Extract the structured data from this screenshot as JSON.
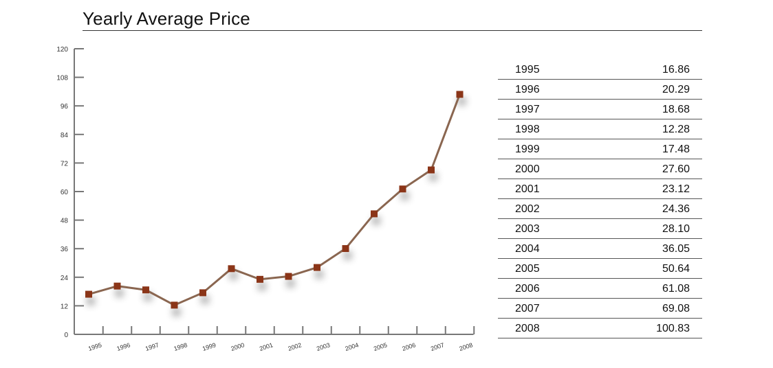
{
  "chart_data": {
    "type": "line",
    "title": "Yearly Average Price",
    "xlabel": "",
    "ylabel": "",
    "ylim": [
      0,
      120
    ],
    "yticks": [
      0,
      12,
      24,
      36,
      48,
      60,
      72,
      84,
      96,
      108,
      120
    ],
    "categories": [
      "1995",
      "1996",
      "1997",
      "1998",
      "1999",
      "2000",
      "2001",
      "2002",
      "2003",
      "2004",
      "2005",
      "2006",
      "2007",
      "2008"
    ],
    "values": [
      16.86,
      20.29,
      18.68,
      12.28,
      17.48,
      27.6,
      23.12,
      24.36,
      28.1,
      36.05,
      50.64,
      61.08,
      69.08,
      100.83
    ],
    "line_color": "#8a6650",
    "marker_color": "#8b3518",
    "grid": false,
    "legend": "none"
  },
  "table": {
    "rows": [
      {
        "year": "1995",
        "value": "16.86"
      },
      {
        "year": "1996",
        "value": "20.29"
      },
      {
        "year": "1997",
        "value": "18.68"
      },
      {
        "year": "1998",
        "value": "12.28"
      },
      {
        "year": "1999",
        "value": "17.48"
      },
      {
        "year": "2000",
        "value": "27.60"
      },
      {
        "year": "2001",
        "value": "23.12"
      },
      {
        "year": "2002",
        "value": "24.36"
      },
      {
        "year": "2003",
        "value": "28.10"
      },
      {
        "year": "2004",
        "value": "36.05"
      },
      {
        "year": "2005",
        "value": "50.64"
      },
      {
        "year": "2006",
        "value": "61.08"
      },
      {
        "year": "2007",
        "value": "69.08"
      },
      {
        "year": "2008",
        "value": "100.83"
      }
    ]
  }
}
